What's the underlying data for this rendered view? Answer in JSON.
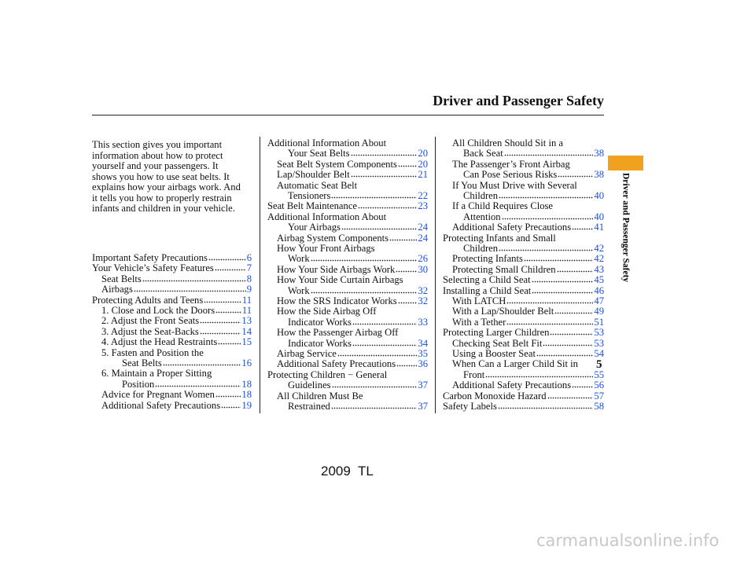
{
  "header": {
    "title": "Driver and Passenger Safety"
  },
  "side_tab": {
    "label": "Driver and Passenger Safety"
  },
  "intro": [
    "This section gives you important",
    "information about how to protect",
    "yourself and your passengers. It",
    "shows you how to use seat belts. It",
    "explains how your airbags work. And",
    "it tells you how to properly restrain",
    "infants and children in your vehicle."
  ],
  "columns": [
    {
      "entries": [
        {
          "lines": [
            "Important Safety Precautions"
          ],
          "page": 6,
          "level": 0
        },
        {
          "lines": [
            "Your Vehicle’s Safety Features"
          ],
          "page": 7,
          "level": 0
        },
        {
          "lines": [
            "Seat Belts"
          ],
          "page": 8,
          "level": 1
        },
        {
          "lines": [
            "Airbags"
          ],
          "page": 9,
          "level": 1
        },
        {
          "lines": [
            "Protecting Adults and Teens"
          ],
          "page": 11,
          "level": 0
        },
        {
          "lines": [
            "1. Close and Lock the Doors"
          ],
          "page": 11,
          "level": 1
        },
        {
          "lines": [
            "2. Adjust the Front Seats"
          ],
          "page": 13,
          "level": 1
        },
        {
          "lines": [
            "3. Adjust the Seat-Backs"
          ],
          "page": 14,
          "level": 1
        },
        {
          "lines": [
            "4. Adjust the Head Restraints"
          ],
          "page": 15,
          "level": 1
        },
        {
          "lines": [
            "5. Fasten and Position the",
            "Seat Belts"
          ],
          "page": 16,
          "level": 1
        },
        {
          "lines": [
            "6. Maintain a Proper Sitting",
            "Position"
          ],
          "page": 18,
          "level": 1
        },
        {
          "lines": [
            "Advice for Pregnant Women"
          ],
          "page": 18,
          "level": 1
        },
        {
          "lines": [
            "Additional Safety Precautions"
          ],
          "page": 19,
          "level": 1
        }
      ]
    },
    {
      "entries": [
        {
          "lines": [
            "Additional Information About",
            "Your Seat Belts"
          ],
          "page": 20,
          "level": 0
        },
        {
          "lines": [
            "Seat Belt System Components"
          ],
          "page": 20,
          "level": 1
        },
        {
          "lines": [
            "Lap/Shoulder Belt"
          ],
          "page": 21,
          "level": 1
        },
        {
          "lines": [
            "Automatic Seat Belt",
            "Tensioners"
          ],
          "page": 22,
          "level": 1
        },
        {
          "lines": [
            "Seat Belt Maintenance"
          ],
          "page": 23,
          "level": 0
        },
        {
          "lines": [
            "Additional Information About",
            "Your Airbags"
          ],
          "page": 24,
          "level": 0
        },
        {
          "lines": [
            "Airbag System Components"
          ],
          "page": 24,
          "level": 1
        },
        {
          "lines": [
            "How Your Front Airbags",
            "Work"
          ],
          "page": 26,
          "level": 1
        },
        {
          "lines": [
            "How Your Side Airbags Work"
          ],
          "page": 30,
          "level": 1
        },
        {
          "lines": [
            "How Your Side Curtain Airbags",
            "Work"
          ],
          "page": 32,
          "level": 1
        },
        {
          "lines": [
            "How the SRS Indicator Works"
          ],
          "page": 32,
          "level": 1
        },
        {
          "lines": [
            "How the Side Airbag Off",
            "Indicator Works"
          ],
          "page": 33,
          "level": 1
        },
        {
          "lines": [
            "How the Passenger Airbag Off",
            "Indicator Works"
          ],
          "page": 34,
          "level": 1
        },
        {
          "lines": [
            "Airbag Service"
          ],
          "page": 35,
          "level": 1
        },
        {
          "lines": [
            "Additional Safety Precautions"
          ],
          "page": 36,
          "level": 1
        },
        {
          "lines": [
            "Protecting Children − General",
            "Guidelines"
          ],
          "page": 37,
          "level": 0
        },
        {
          "lines": [
            "All Children Must Be",
            "Restrained"
          ],
          "page": 37,
          "level": 1
        }
      ]
    },
    {
      "entries": [
        {
          "lines": [
            "All Children Should Sit in a",
            "Back Seat"
          ],
          "page": 38,
          "level": 1
        },
        {
          "lines": [
            "The Passenger’s Front Airbag",
            "Can Pose Serious Risks"
          ],
          "page": 38,
          "level": 1
        },
        {
          "lines": [
            "If You Must Drive with Several",
            "Children"
          ],
          "page": 40,
          "level": 1
        },
        {
          "lines": [
            "If a Child Requires Close",
            "Attention"
          ],
          "page": 40,
          "level": 1
        },
        {
          "lines": [
            "Additional Safety Precautions"
          ],
          "page": 41,
          "level": 1
        },
        {
          "lines": [
            "Protecting Infants and Small",
            "Children"
          ],
          "page": 42,
          "level": 0
        },
        {
          "lines": [
            "Protecting Infants"
          ],
          "page": 42,
          "level": 1
        },
        {
          "lines": [
            "Protecting Small Children"
          ],
          "page": 43,
          "level": 1
        },
        {
          "lines": [
            "Selecting a Child Seat"
          ],
          "page": 45,
          "level": 0
        },
        {
          "lines": [
            "Installing a Child Seat"
          ],
          "page": 46,
          "level": 0
        },
        {
          "lines": [
            "With LATCH"
          ],
          "page": 47,
          "level": 1
        },
        {
          "lines": [
            "With a Lap/Shoulder Belt"
          ],
          "page": 49,
          "level": 1
        },
        {
          "lines": [
            "With a Tether"
          ],
          "page": 51,
          "level": 1
        },
        {
          "lines": [
            "Protecting Larger Children"
          ],
          "page": 53,
          "level": 0
        },
        {
          "lines": [
            "Checking Seat Belt Fit"
          ],
          "page": 53,
          "level": 1
        },
        {
          "lines": [
            "Using a Booster Seat"
          ],
          "page": 54,
          "level": 1
        },
        {
          "lines": [
            "When Can a Larger Child Sit in",
            "Front"
          ],
          "page": 55,
          "level": 1
        },
        {
          "lines": [
            "Additional Safety Precautions"
          ],
          "page": 56,
          "level": 1
        },
        {
          "lines": [
            "Carbon Monoxide Hazard"
          ],
          "page": 57,
          "level": 0
        },
        {
          "lines": [
            "Safety Labels"
          ],
          "page": 58,
          "level": 0
        }
      ]
    }
  ],
  "page_number": 5,
  "footer": "2009  TL",
  "watermark": "carmanualsonline.info"
}
